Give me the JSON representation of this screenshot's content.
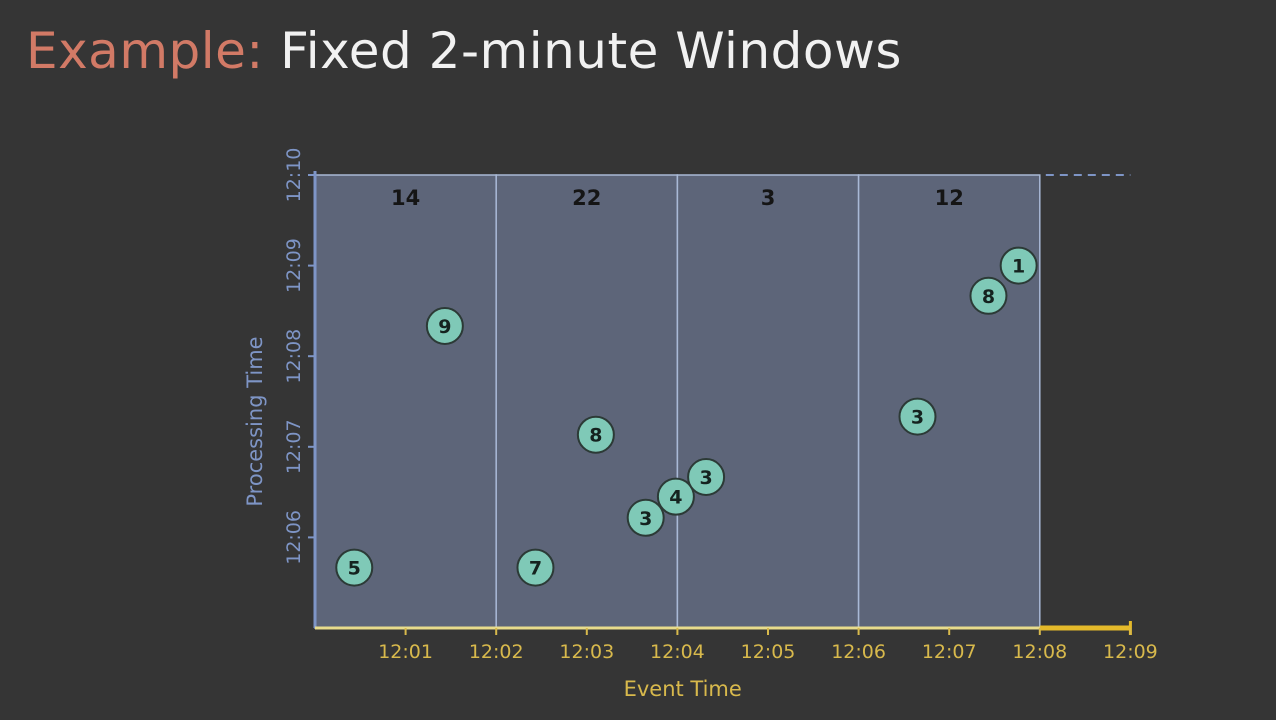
{
  "title": {
    "prefix": "Example:",
    "main": "Fixed 2-minute Windows"
  },
  "colors": {
    "background": "#353535",
    "title_prefix": "#d27a66",
    "title_main": "#f1f1f1",
    "event_time_axis": "#d8b94c",
    "processing_time_axis": "#7e95c6",
    "window_fill": "#5d6579",
    "point_fill": "#7fc9b7"
  },
  "chart_data": {
    "type": "scatter",
    "xlabel": "Event Time",
    "ylabel": "Processing Time",
    "x_ticks": [
      "12:01",
      "12:02",
      "12:03",
      "12:04",
      "12:05",
      "12:06",
      "12:07",
      "12:08",
      "12:09"
    ],
    "y_ticks": [
      "12:06",
      "12:07",
      "12:08",
      "12:09",
      "12:10"
    ],
    "xlim": [
      "12:00",
      "12:09"
    ],
    "ylim": [
      "12:05",
      "12:10"
    ],
    "windows": [
      {
        "start": "12:00",
        "end": "12:02",
        "sum": "14"
      },
      {
        "start": "12:02",
        "end": "12:04",
        "sum": "22"
      },
      {
        "start": "12:04",
        "end": "12:06",
        "sum": "3"
      },
      {
        "start": "12:06",
        "end": "12:08",
        "sum": "12"
      }
    ],
    "points": [
      {
        "event_time": "12:00:26",
        "processing_time": "12:05:40",
        "value": "5"
      },
      {
        "event_time": "12:01:26",
        "processing_time": "12:08:20",
        "value": "9"
      },
      {
        "event_time": "12:02:26",
        "processing_time": "12:05:40",
        "value": "7"
      },
      {
        "event_time": "12:03:06",
        "processing_time": "12:07:08",
        "value": "8"
      },
      {
        "event_time": "12:03:39",
        "processing_time": "12:06:13",
        "value": "3"
      },
      {
        "event_time": "12:03:59",
        "processing_time": "12:06:27",
        "value": "4"
      },
      {
        "event_time": "12:04:19",
        "processing_time": "12:06:40",
        "value": "3"
      },
      {
        "event_time": "12:06:39",
        "processing_time": "12:07:20",
        "value": "3"
      },
      {
        "event_time": "12:07:26",
        "processing_time": "12:08:40",
        "value": "8"
      },
      {
        "event_time": "12:07:46",
        "processing_time": "12:09:00",
        "value": "1"
      }
    ]
  }
}
